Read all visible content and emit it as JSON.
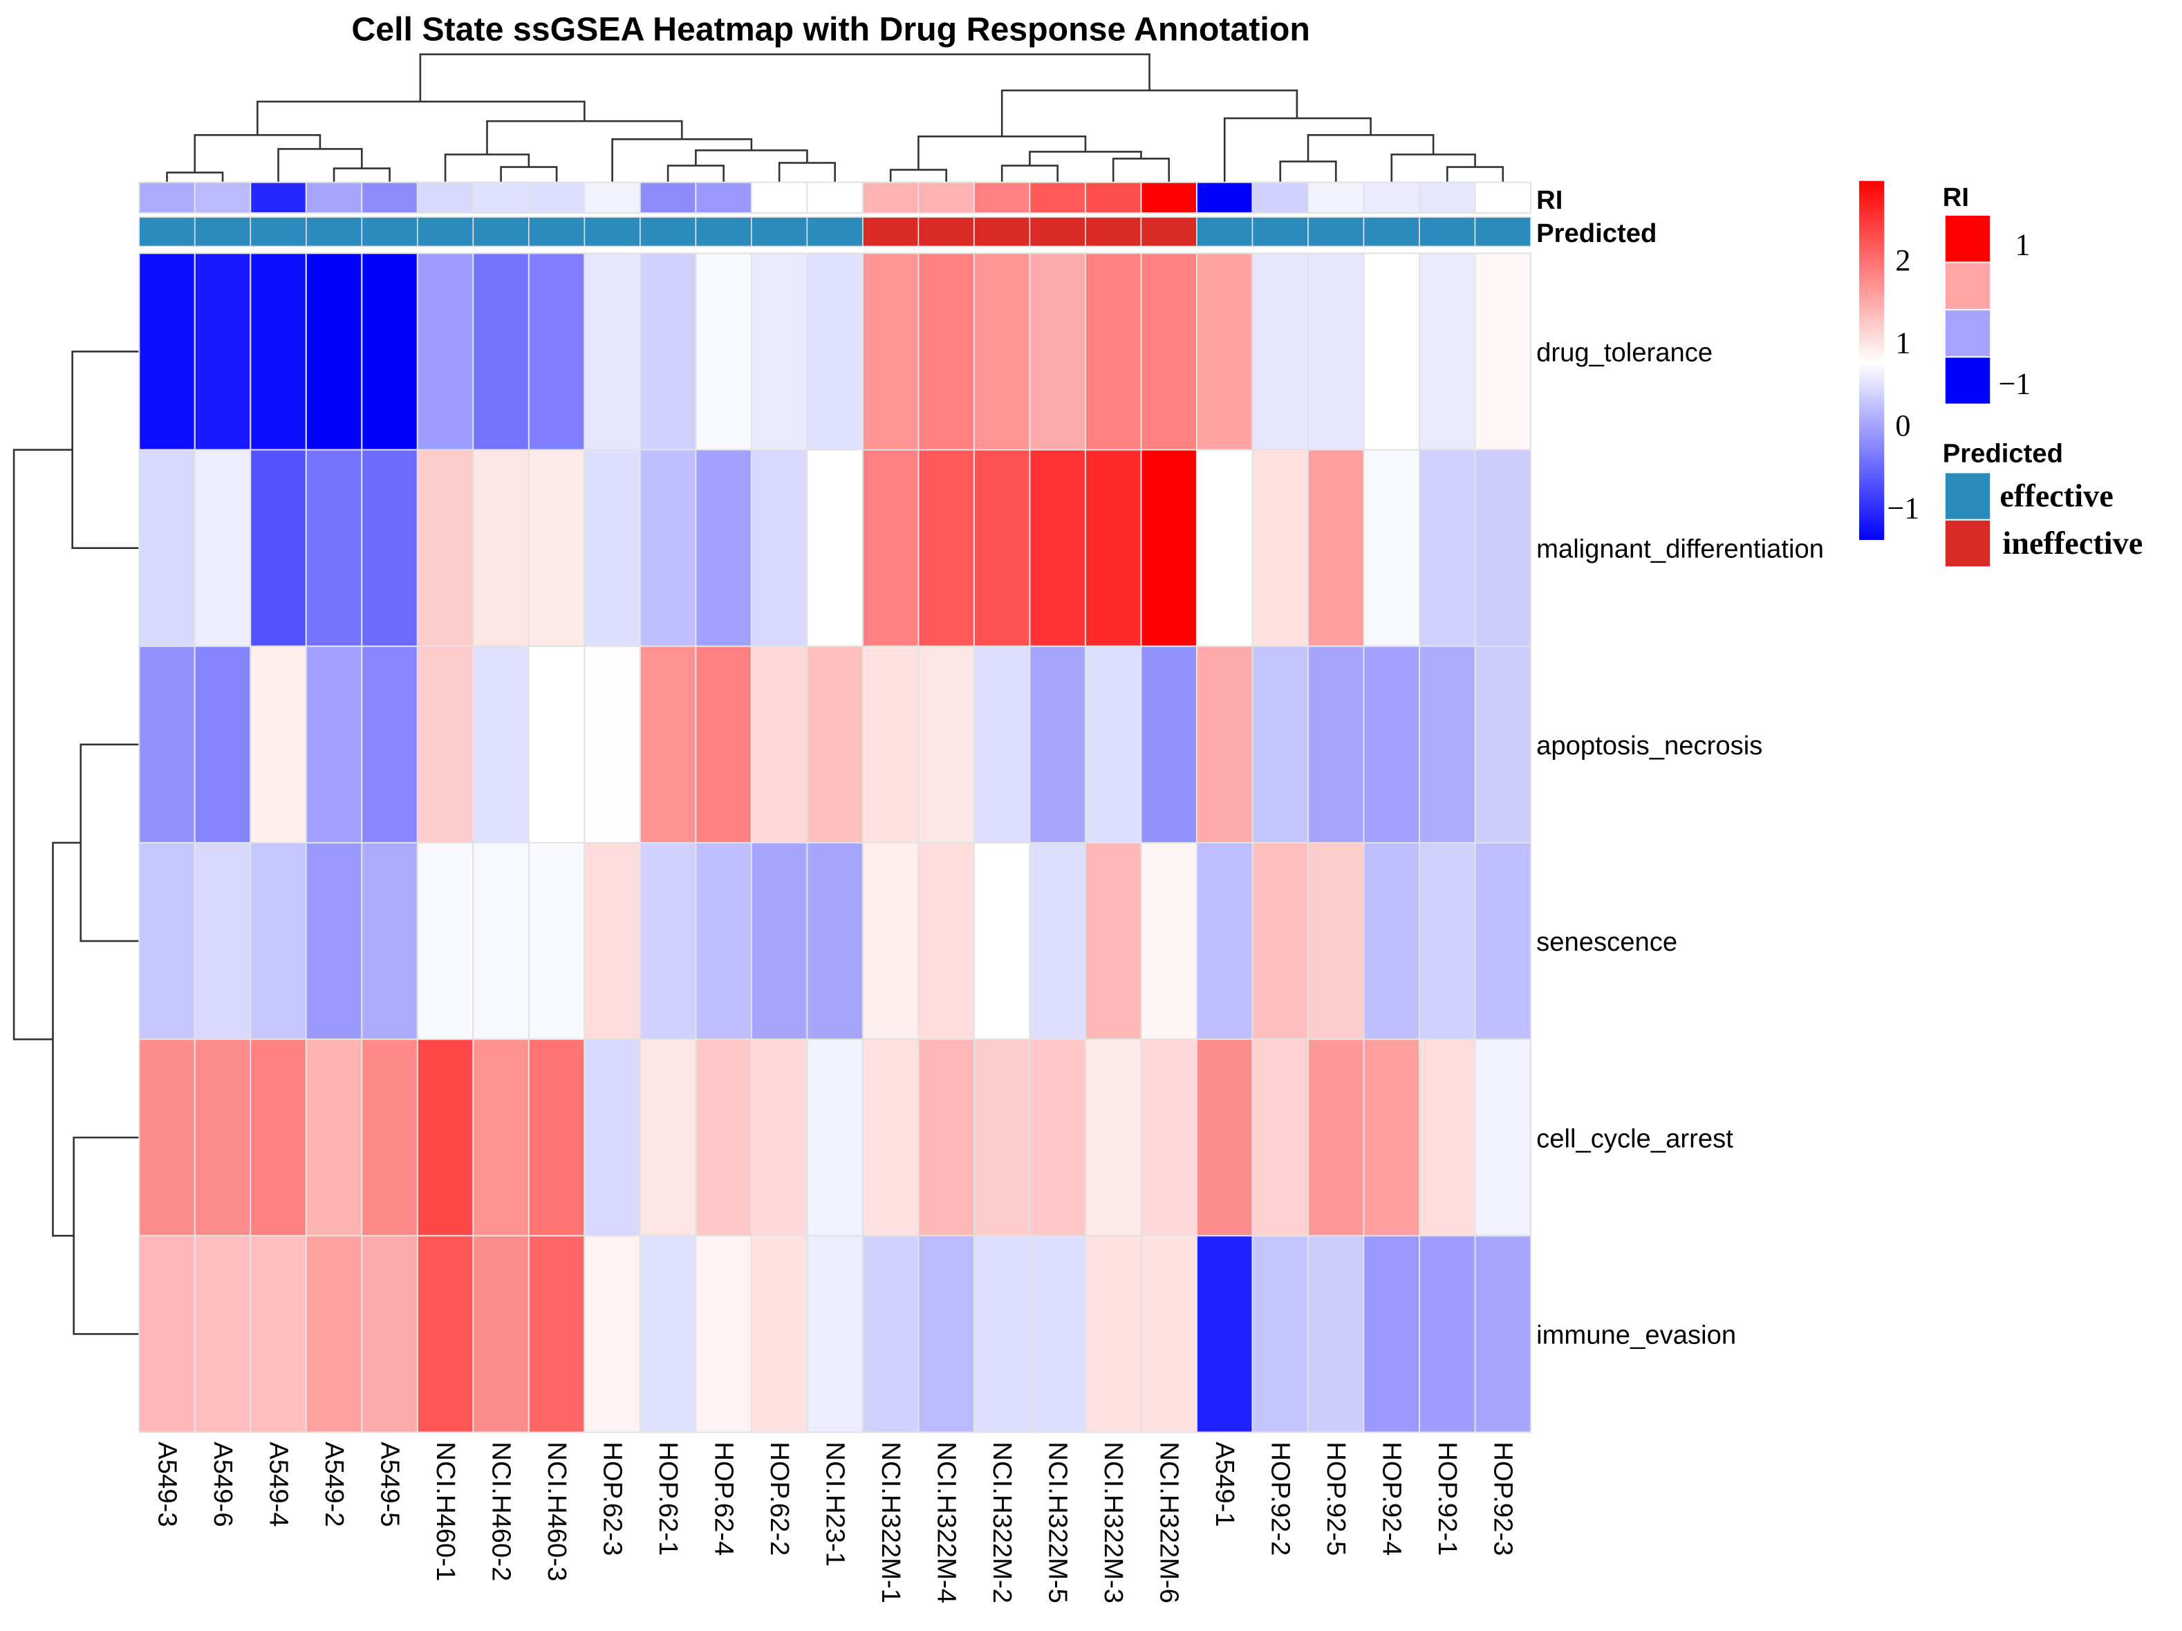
{
  "chart_data": {
    "type": "heatmap",
    "title": "Cell State ssGSEA Heatmap with Drug Response Annotation",
    "columns": [
      "A549-3",
      "A549-6",
      "A549-4",
      "A549-2",
      "A549-5",
      "NCI.H460-1",
      "NCI.H460-2",
      "NCI.H460-3",
      "HOP.62-3",
      "HOP.62-1",
      "HOP.62-4",
      "HOP.62-2",
      "NCI.H23-1",
      "NCI.H322M-1",
      "NCI.H322M-4",
      "NCI.H322M-2",
      "NCI.H322M-5",
      "NCI.H322M-3",
      "NCI.H322M-6",
      "A549-1",
      "HOP.92-2",
      "HOP.92-5",
      "HOP.92-4",
      "HOP.92-1",
      "HOP.92-3"
    ],
    "rows": [
      "drug_tolerance",
      "malignant_differentiation",
      "apoptosis_necrosis",
      "senescence",
      "cell_cycle_arrest",
      "immune_evasion"
    ],
    "values": [
      [
        -1.29,
        -1.19,
        -1.29,
        -1.4,
        -1.4,
        -0.07,
        -0.43,
        -0.33,
        0.54,
        0.36,
        0.69,
        0.58,
        0.49,
        1.67,
        1.85,
        1.67,
        1.48,
        1.85,
        1.85,
        1.54,
        0.54,
        0.54,
        0.75,
        0.58,
        0.82
      ],
      [
        0.43,
        0.6,
        -0.71,
        -0.43,
        -0.5,
        1.19,
        0.97,
        0.93,
        0.47,
        0.21,
        -0.05,
        0.43,
        0.75,
        1.85,
        2.18,
        2.25,
        2.51,
        2.58,
        2.95,
        0.75,
        1.01,
        1.59,
        0.69,
        0.36,
        0.32
      ],
      [
        -0.17,
        -0.28,
        0.9,
        -0.05,
        -0.26,
        1.19,
        0.49,
        0.75,
        0.77,
        1.7,
        1.85,
        1.08,
        1.3,
        1.01,
        0.97,
        0.47,
        0.0,
        0.47,
        -0.17,
        1.48,
        0.26,
        0.0,
        -0.05,
        0.04,
        0.32
      ],
      [
        0.28,
        0.43,
        0.28,
        -0.11,
        0.04,
        0.69,
        0.69,
        0.69,
        1.04,
        0.36,
        0.21,
        0.0,
        0.0,
        0.9,
        1.04,
        0.75,
        0.47,
        1.37,
        0.84,
        0.21,
        1.3,
        1.19,
        0.21,
        0.36,
        0.21
      ],
      [
        1.74,
        1.74,
        1.85,
        1.41,
        1.78,
        2.33,
        1.7,
        1.96,
        0.43,
        0.97,
        1.23,
        1.08,
        0.64,
        1.01,
        1.37,
        1.19,
        1.23,
        0.93,
        1.08,
        1.74,
        1.15,
        1.63,
        1.59,
        1.04,
        0.64
      ],
      [
        1.37,
        1.3,
        1.3,
        1.56,
        1.48,
        2.22,
        1.74,
        2.07,
        0.86,
        0.49,
        0.86,
        1.01,
        0.6,
        0.36,
        0.17,
        0.47,
        0.47,
        1.01,
        1.01,
        -1.12,
        0.26,
        0.32,
        -0.11,
        -0.07,
        0.0
      ]
    ],
    "color_scale": {
      "min": -1.4,
      "mid": 0.75,
      "max": 2.95,
      "low_color": "#0000ff",
      "mid_color": "#ffffff",
      "high_color": "#ff0000",
      "ticks": [
        "2",
        "1",
        "0",
        "−1"
      ],
      "tick_values": [
        2,
        1,
        0,
        -1
      ]
    },
    "annotations": {
      "RI": {
        "label": "RI",
        "values": [
          -0.33,
          -0.27,
          -0.85,
          -0.35,
          -0.45,
          -0.15,
          -0.12,
          -0.13,
          -0.05,
          -0.45,
          -0.4,
          0.0,
          0.0,
          0.3,
          0.3,
          0.5,
          0.65,
          0.7,
          1.0,
          -1.0,
          -0.18,
          -0.05,
          -0.08,
          -0.1,
          0.0
        ],
        "legend_title": "RI",
        "legend_colors": [
          "#ff0000",
          "#ffa5a5",
          "#a5a5ff",
          "#0000ff"
        ],
        "legend_ticks": [
          "1",
          "−1"
        ]
      },
      "Predicted": {
        "label": "Predicted",
        "values": [
          "effective",
          "effective",
          "effective",
          "effective",
          "effective",
          "effective",
          "effective",
          "effective",
          "effective",
          "effective",
          "effective",
          "effective",
          "effective",
          "ineffective",
          "ineffective",
          "ineffective",
          "ineffective",
          "ineffective",
          "ineffective",
          "effective",
          "effective",
          "effective",
          "effective",
          "effective",
          "effective"
        ],
        "legend_title": "Predicted",
        "categories": [
          "effective",
          "ineffective"
        ],
        "colors": {
          "effective": "#2b8bbd",
          "ineffective": "#da2a26"
        }
      }
    }
  }
}
